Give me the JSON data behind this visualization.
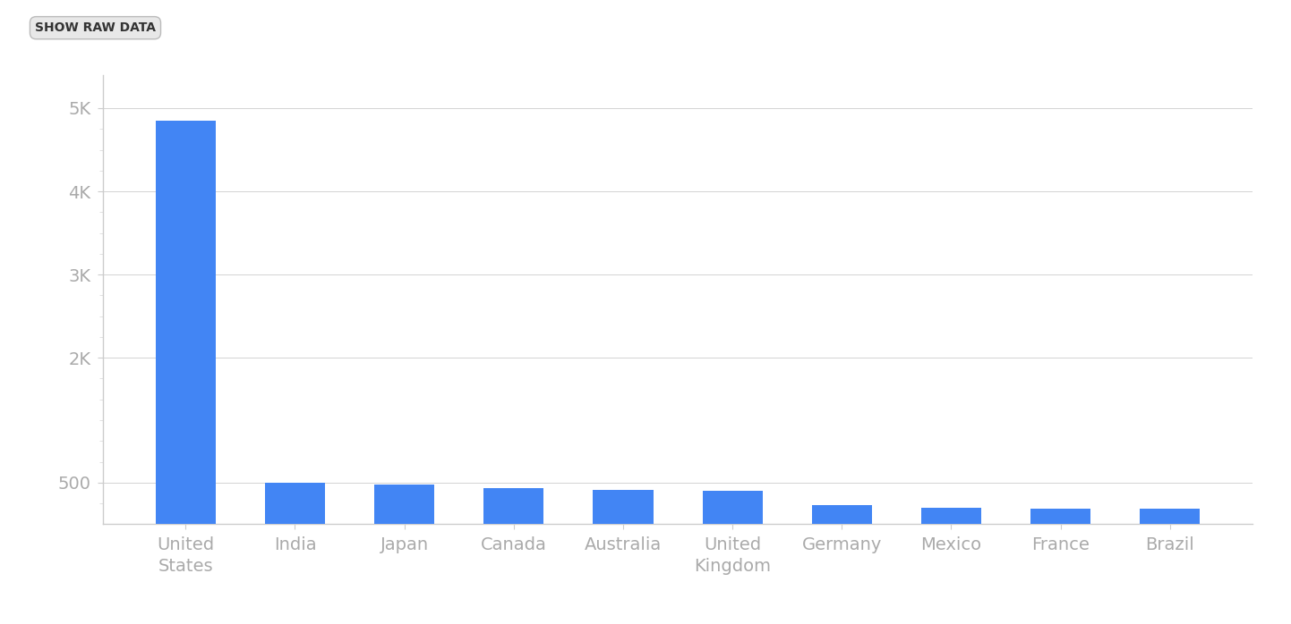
{
  "categories": [
    "United\nStates",
    "India",
    "Japan",
    "Canada",
    "Australia",
    "United\nKingdom",
    "Germany",
    "Mexico",
    "France",
    "Brazil"
  ],
  "values": [
    4850,
    500,
    480,
    430,
    415,
    400,
    230,
    200,
    190,
    185
  ],
  "bar_color": "#4285f4",
  "background_color": "#ffffff",
  "ytick_labels": [
    "500",
    "2K",
    "3K",
    "4K",
    "5K"
  ],
  "ytick_values": [
    500,
    2000,
    3000,
    4000,
    5000
  ],
  "minor_ytick_values": [
    250,
    750,
    1000,
    1250,
    1500,
    1750,
    2250,
    2500,
    2750,
    3250,
    3500,
    3750,
    4250,
    4500,
    4750
  ],
  "ylim": [
    0,
    5400
  ],
  "button_text": "SHOW RAW DATA",
  "button_color": "#e8e8e8",
  "axis_color": "#cccccc",
  "tick_label_color": "#aaaaaa",
  "tick_label_fontsize": 14,
  "minor_tick_color": "#dddddd"
}
